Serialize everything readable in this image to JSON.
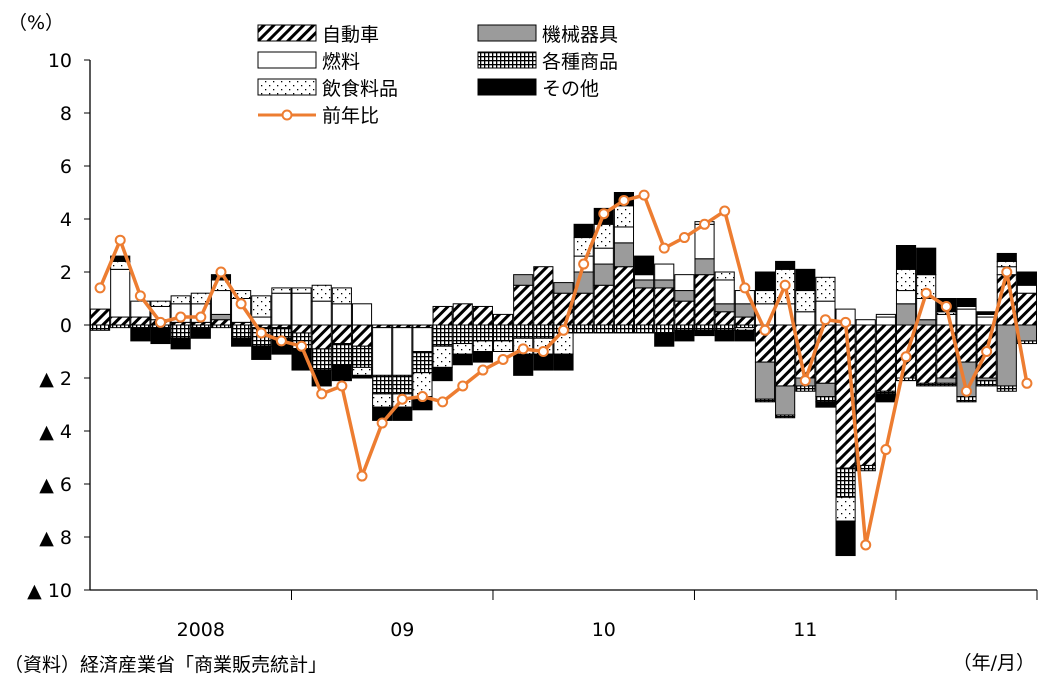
{
  "chart_data": {
    "type": "bar",
    "y_unit_label": "（%）",
    "x_unit_label": "（年/月）",
    "source": "（資料）経済産業省「商業販売統計」",
    "negative_marker": "▲",
    "ylim": [
      -10,
      10
    ],
    "yticks": [
      "10",
      "8",
      "6",
      "4",
      "2",
      "0",
      "▲ 2",
      "▲ 4",
      "▲ 6",
      "▲ 8",
      "▲ 10"
    ],
    "ytick_values": [
      10,
      8,
      6,
      4,
      2,
      0,
      -2,
      -4,
      -6,
      -8,
      -10
    ],
    "year_labels": [
      {
        "label": "2008",
        "index": 5.5
      },
      {
        "label": "09",
        "index": 15.5
      },
      {
        "label": "10",
        "index": 25.5
      },
      {
        "label": "11",
        "index": 35.5
      }
    ],
    "legend": {
      "placement": "top",
      "items": [
        {
          "label": "自動車",
          "series": "auto"
        },
        {
          "label": "機械器具",
          "series": "mach"
        },
        {
          "label": "燃料",
          "series": "fuel"
        },
        {
          "label": "各種商品",
          "series": "gen"
        },
        {
          "label": "飲食料品",
          "series": "food"
        },
        {
          "label": "その他",
          "series": "other"
        },
        {
          "label": "前年比",
          "series": "line"
        }
      ]
    },
    "colors": {
      "line": "#ED7D31",
      "mach": "#9B9B9B",
      "other": "#000000"
    },
    "series": [
      {
        "name": "自動車",
        "key": "auto",
        "values": [
          0.6,
          0.3,
          0.3,
          0.2,
          0.1,
          0.1,
          0.2,
          0.1,
          -0.1,
          -0.1,
          -0.3,
          -0.9,
          -0.7,
          -0.8,
          -0.1,
          -0.1,
          -0.1,
          0.7,
          0.8,
          0.7,
          0.4,
          1.5,
          2.2,
          1.2,
          1.2,
          1.5,
          2.2,
          1.4,
          1.4,
          0.9,
          1.9,
          0.5,
          0.3,
          -1.4,
          -2.3,
          -2.0,
          -2.2,
          -5.4,
          -5.3,
          -2.5,
          -2.0,
          -2.2,
          -2.0,
          -1.4,
          -2.0,
          1.9,
          1.2
        ]
      },
      {
        "name": "機械器具",
        "key": "mach",
        "values": [
          0.0,
          0.0,
          0.0,
          0.0,
          0.0,
          0.0,
          0.2,
          0.0,
          0.0,
          0.0,
          0.0,
          0.0,
          0.0,
          0.0,
          0.0,
          0.0,
          0.0,
          0.0,
          0.0,
          0.0,
          0.0,
          0.4,
          0.0,
          0.4,
          0.8,
          0.8,
          0.9,
          0.3,
          0.3,
          0.4,
          0.6,
          0.3,
          0.5,
          -1.4,
          -1.1,
          -0.3,
          -0.5,
          0.0,
          0.0,
          0.0,
          0.8,
          0.2,
          -0.2,
          -1.3,
          -0.1,
          -2.3,
          -0.6
        ]
      },
      {
        "name": "燃料",
        "key": "fuel",
        "values": [
          0.0,
          1.8,
          0.6,
          0.5,
          0.7,
          0.7,
          0.9,
          0.9,
          0.3,
          1.2,
          1.2,
          0.9,
          0.8,
          0.8,
          -1.8,
          -1.8,
          -0.9,
          0.0,
          0.0,
          0.0,
          0.0,
          0.0,
          0.0,
          0.0,
          0.6,
          0.6,
          0.6,
          0.2,
          0.6,
          0.6,
          1.3,
          0.9,
          0.5,
          0.8,
          0.8,
          0.5,
          0.9,
          0.6,
          0.2,
          0.3,
          0.5,
          0.8,
          0.4,
          0.6,
          0.3,
          0.3,
          0.3
        ]
      },
      {
        "name": "各種商品",
        "key": "gen",
        "values": [
          -0.2,
          -0.1,
          -0.1,
          -0.1,
          -0.5,
          -0.1,
          -0.1,
          -0.5,
          -0.7,
          -0.4,
          -0.6,
          -0.8,
          -0.8,
          -0.8,
          -0.7,
          -0.7,
          -0.8,
          -0.8,
          -0.7,
          -0.6,
          -0.6,
          -0.5,
          -0.5,
          -0.3,
          -0.3,
          -0.3,
          -0.3,
          -0.3,
          -0.3,
          -0.2,
          -0.2,
          -0.2,
          -0.1,
          -0.1,
          -0.1,
          -0.2,
          -0.2,
          -1.1,
          -0.2,
          -0.1,
          -0.1,
          -0.1,
          -0.1,
          -0.2,
          -0.2,
          -0.2,
          -0.1
        ]
      },
      {
        "name": "飲食料品",
        "key": "food",
        "values": [
          0.0,
          0.3,
          0.0,
          0.2,
          0.3,
          0.4,
          0.4,
          0.3,
          0.8,
          0.2,
          0.2,
          0.6,
          0.6,
          -0.3,
          -0.5,
          -0.5,
          -0.9,
          -0.8,
          -0.4,
          -0.4,
          -0.4,
          -0.6,
          -0.6,
          -0.8,
          0.7,
          0.9,
          0.8,
          0.0,
          0.0,
          0.0,
          0.1,
          0.3,
          -0.1,
          0.5,
          1.3,
          0.8,
          0.9,
          -0.9,
          0.0,
          0.1,
          0.8,
          0.9,
          0.1,
          0.1,
          0.1,
          0.2,
          0.0
        ]
      },
      {
        "name": "その他",
        "key": "other",
        "values": [
          0.0,
          0.2,
          -0.5,
          -0.6,
          -0.4,
          -0.4,
          0.2,
          -0.3,
          -0.5,
          -0.6,
          -0.8,
          -0.6,
          -0.6,
          -0.1,
          -0.5,
          -0.5,
          -0.5,
          -0.5,
          -0.4,
          -0.4,
          0.0,
          -0.8,
          -0.6,
          -0.6,
          0.5,
          0.6,
          0.5,
          0.7,
          -0.5,
          -0.4,
          -0.2,
          -0.4,
          -0.4,
          0.7,
          0.3,
          0.8,
          -0.2,
          -1.3,
          0.0,
          -0.3,
          0.9,
          1.0,
          0.5,
          0.3,
          0.1,
          0.3,
          0.5
        ]
      }
    ],
    "line": {
      "name": "前年比",
      "values": [
        1.4,
        3.2,
        1.1,
        0.1,
        0.3,
        0.3,
        2.0,
        0.8,
        -0.3,
        -0.6,
        -0.8,
        -2.6,
        -2.3,
        -5.7,
        -3.7,
        -2.8,
        -2.7,
        -2.9,
        -2.3,
        -1.7,
        -1.3,
        -0.9,
        -1.0,
        -0.2,
        2.3,
        4.2,
        4.7,
        4.9,
        2.9,
        3.3,
        3.8,
        4.3,
        1.4,
        -0.2,
        1.5,
        -2.1,
        0.2,
        0.1,
        -8.3,
        -4.7,
        -1.2,
        1.2,
        0.7,
        -2.5,
        -1.0,
        2.0,
        -2.2
      ]
    }
  }
}
